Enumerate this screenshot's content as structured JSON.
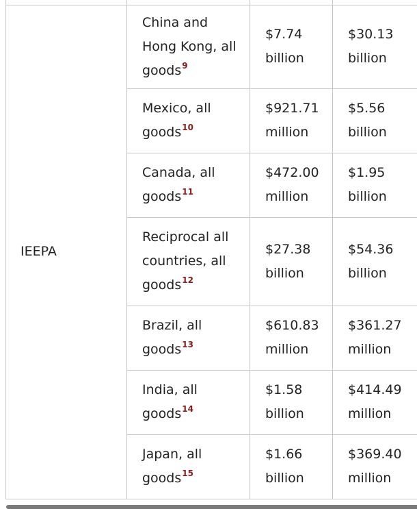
{
  "table": {
    "group_label": "IEEPA",
    "rows": [
      {
        "desc": "China and Hong Kong, all goods",
        "fn": "9",
        "v1": "$7.74 billion",
        "v2": "$30.13 billion"
      },
      {
        "desc": "Mexico, all goods",
        "fn": "10",
        "v1": "$921.71 million",
        "v2": "$5.56 billion"
      },
      {
        "desc": "Canada, all goods",
        "fn": "11",
        "v1": "$472.00 million",
        "v2": "$1.95 billion"
      },
      {
        "desc": "Reciprocal all countries, all goods",
        "fn": "12",
        "v1": "$27.38 billion",
        "v2": "$54.36 billion"
      },
      {
        "desc": "Brazil, all goods",
        "fn": "13",
        "v1": "$610.83 million",
        "v2": "$361.27 million"
      },
      {
        "desc": "India, all goods",
        "fn": "14",
        "v1": "$1.58 billion",
        "v2": "$414.49 million"
      },
      {
        "desc": "Japan, all goods",
        "fn": "15",
        "v1": "$1.66 billion",
        "v2": "$369.40 million"
      }
    ]
  }
}
